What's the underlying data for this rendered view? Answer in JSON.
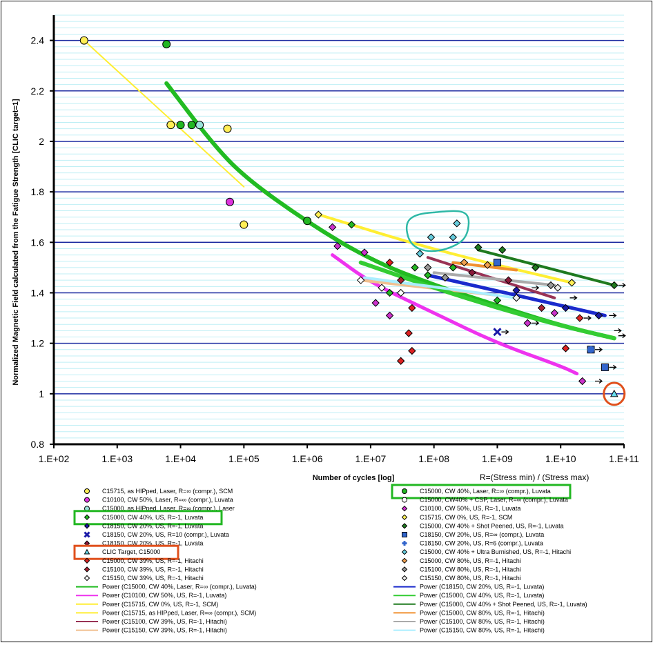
{
  "chart_data": {
    "type": "scatter",
    "title": "",
    "xlabel": "Number of cycles [log]",
    "ylabel": "Normalized Magnetic Field calculated from the Fatigue Strength  [CLIC target=1]",
    "r_note": "R=(Stress min) / (Stress max)",
    "xscale": "log",
    "xlim": [
      100,
      100000000000
    ],
    "ylim": [
      0.8,
      2.5
    ],
    "x_ticks": [
      100,
      1000,
      10000,
      100000,
      1000000,
      10000000,
      100000000,
      1000000000,
      10000000000,
      100000000000
    ],
    "x_tick_labels": [
      "1.E+02",
      "1.E+03",
      "1.E+04",
      "1.E+05",
      "1.E+06",
      "1.E+07",
      "1.E+08",
      "1.E+09",
      "1.E+10",
      "1.E+11"
    ],
    "y_ticks": [
      0.8,
      1,
      1.2,
      1.4,
      1.6,
      1.8,
      2,
      2.2,
      2.4
    ],
    "y_tick_labels": [
      "0.8",
      "1",
      "1.2",
      "1.4",
      "1.6",
      "1.8",
      "2",
      "2.2",
      "2.4"
    ],
    "grid": true,
    "colors": {
      "major_grid": "#1c2aa0",
      "minor_grid": "#bfeff5",
      "highlight_green": "#22b722",
      "highlight_red": "#e0501c",
      "highlight_teal": "#2eb8a6"
    },
    "series": [
      {
        "name": "C15715, as HIPped, Laser, R=∞ (compr.), SCM",
        "marker": "circle",
        "color": "#ffee55",
        "points": [
          [
            300,
            2.4
          ],
          [
            7000,
            2.065
          ],
          [
            55000,
            2.05
          ],
          [
            100000,
            1.67
          ]
        ]
      },
      {
        "name": "C10100, CW 50%, Laser, R=∞ (compr.), Luvata",
        "marker": "circle",
        "color": "#dd33dd",
        "points": [
          [
            60000,
            1.76
          ]
        ]
      },
      {
        "name": "C15000, as HIPped, Laser, R=∞ (compr.), Laser",
        "marker": "circle",
        "color": "#9be3d9",
        "points": [
          [
            20000,
            2.065
          ]
        ]
      },
      {
        "name": "C15000, CW 40%, US, R=-1, Luvata",
        "marker": "diamond",
        "color": "#22b722",
        "points": [
          [
            5000000,
            1.67
          ],
          [
            20000000,
            1.4
          ],
          [
            50000000,
            1.5
          ],
          [
            80000000,
            1.47
          ],
          [
            200000000,
            1.5
          ],
          [
            1000000000,
            1.37
          ]
        ]
      },
      {
        "name": "C18150, CW 20%, US, R=-1, Luvata",
        "marker": "diamond",
        "color": "#1a1aa8",
        "points": [
          [
            2000000000,
            1.41
          ],
          [
            12000000000,
            1.34
          ],
          [
            40000000000,
            1.31
          ]
        ]
      },
      {
        "name": "C18150, CW 20%, US, R=10 (compr.), Luvata",
        "marker": "x",
        "color": "#1a1aa8",
        "points": [
          [
            1000000000,
            1.245
          ]
        ]
      },
      {
        "name": "C18150, CW 20%, US, R=-1, Luvata",
        "marker": "diamond",
        "color": "#8b1a3a",
        "points": [
          [
            400000000,
            1.48
          ],
          [
            1500000000,
            1.45
          ]
        ]
      },
      {
        "name": "CLIC Target, C15000",
        "marker": "triangle",
        "color": "#66ddee",
        "points": [
          [
            70000000000,
            1.0
          ]
        ]
      },
      {
        "name": "C15000, CW 39%, US, R=-1, Hitachi",
        "marker": "diamond",
        "color": "#dd2222",
        "points": [
          [
            30000000,
            1.13
          ],
          [
            40000000,
            1.24
          ],
          [
            45000000,
            1.17
          ],
          [
            45000000,
            1.34
          ],
          [
            20000000,
            1.52
          ],
          [
            12000000000,
            1.18
          ],
          [
            20000000000,
            1.3
          ]
        ]
      },
      {
        "name": "C15100, CW 39%, US, R=-1, Hitachi",
        "marker": "diamond",
        "color": "#aa2233",
        "points": [
          [
            30000000,
            1.45
          ],
          [
            5000000000,
            1.34
          ]
        ]
      },
      {
        "name": "C15150, CW 39%, US, R=-1, Hitachi",
        "marker": "diamond",
        "color": "#ffffff",
        "points": [
          [
            7000000,
            1.45
          ],
          [
            15000000,
            1.42
          ],
          [
            30000000,
            1.4
          ]
        ]
      },
      {
        "name": "C15000, CW 40%, Laser, R=∞ (compr.), Luvata",
        "marker": "circle",
        "color": "#22b722",
        "points": [
          [
            6000,
            2.385
          ],
          [
            10000,
            2.065
          ],
          [
            15000,
            2.065
          ],
          [
            1000000,
            1.685
          ]
        ]
      },
      {
        "name": "C15000, CW40% + CSP, Laser, R=∞ (compr.), Luvata",
        "marker": "circle",
        "color": "#ffffff",
        "points": []
      },
      {
        "name": "C10100, CW 50%, US, R=-1, Luvata",
        "marker": "diamond",
        "color": "#cc33cc",
        "points": [
          [
            2500000,
            1.66
          ],
          [
            3000000,
            1.585
          ],
          [
            8000000,
            1.56
          ],
          [
            12000000,
            1.36
          ],
          [
            20000000,
            1.31
          ],
          [
            3000000000,
            1.28
          ],
          [
            8000000000,
            1.32
          ],
          [
            22000000000,
            1.05
          ]
        ]
      },
      {
        "name": "C15715, CW 0%, US, R=-1, SCM",
        "marker": "diamond",
        "color": "#ffee55",
        "points": [
          [
            1500000,
            1.71
          ],
          [
            15000000000,
            1.44
          ]
        ]
      },
      {
        "name": "C15000, CW 40% + Shot Peened, US, R=-1, Luvata",
        "marker": "diamond",
        "color": "#1f7a1f",
        "points": [
          [
            500000000,
            1.58
          ],
          [
            1200000000,
            1.57
          ],
          [
            4000000000,
            1.5
          ],
          [
            70000000000,
            1.43
          ]
        ]
      },
      {
        "name": "C18150, CW 20%, US, R=∞ (compr.), Luvata",
        "marker": "square",
        "color": "#3366cc",
        "points": [
          [
            1000000000,
            1.52
          ],
          [
            30000000000,
            1.175
          ],
          [
            50000000000,
            1.105
          ]
        ]
      },
      {
        "name": "C18150, CW 20%, US, R=6 (compr.), Luvata",
        "marker": "plus",
        "color": "#3366cc",
        "points": [
          [
            30000000000,
            1.175
          ]
        ]
      },
      {
        "name": "C15000, CW 40% + Ultra Burnished, US, R=-1, Hitachi",
        "marker": "diamond",
        "color": "#66ccdd",
        "points": [
          [
            60000000,
            1.555
          ],
          [
            90000000,
            1.62
          ],
          [
            200000000,
            1.62
          ],
          [
            230000000,
            1.675
          ]
        ]
      },
      {
        "name": "C15000, CW 80%, US, R=-1, Hitachi",
        "marker": "diamond",
        "color": "#f0a050",
        "points": [
          [
            300000000,
            1.52
          ],
          [
            700000000,
            1.51
          ]
        ]
      },
      {
        "name": "C15100, CW 80%, US, R=-1, Hitachi",
        "marker": "diamond",
        "color": "#999999",
        "points": [
          [
            80000000,
            1.5
          ],
          [
            150000000,
            1.46
          ],
          [
            7000000000,
            1.43
          ]
        ]
      },
      {
        "name": "C15150, CW 80%, US, R=-1, Hitachi",
        "marker": "diamond",
        "color": "#eeeeee",
        "points": [
          [
            9000000000,
            1.42
          ],
          [
            2000000000,
            1.38
          ]
        ]
      }
    ],
    "fits": [
      {
        "name": "Power (C15000, CW 40%, Laser, R=∞ (compr.), Luvata)",
        "color": "#22bb22",
        "width": 6,
        "x_range": [
          6000,
          70000000000
        ],
        "points": [
          [
            6000,
            2.23
          ],
          [
            30000,
            2.0
          ],
          [
            100000,
            1.86
          ],
          [
            1000000,
            1.68
          ],
          [
            10000000,
            1.53
          ],
          [
            100000000,
            1.43
          ],
          [
            1000000000,
            1.35
          ],
          [
            10000000000,
            1.27
          ],
          [
            70000000000,
            1.22
          ]
        ]
      },
      {
        "name": "Power (C10100, CW 50%, US, R=-1, Luvata)",
        "color": "#ee33ee",
        "width": 5,
        "x_range": [
          2500000,
          18000000000
        ],
        "points": [
          [
            2500000,
            1.55
          ],
          [
            10000000,
            1.44
          ],
          [
            100000000,
            1.32
          ],
          [
            1000000000,
            1.2
          ],
          [
            10000000000,
            1.11
          ],
          [
            18000000000,
            1.08
          ]
        ]
      },
      {
        "name": "Power (C15715, CW 0%, US, R=-1, SCM)",
        "color": "#ffee33",
        "width": 4,
        "x_range": [
          1500000,
          15000000000
        ],
        "points": [
          [
            1500000,
            1.71
          ],
          [
            100000000,
            1.57
          ],
          [
            15000000000,
            1.44
          ]
        ]
      },
      {
        "name": "Power (C15715, as HIPped, Laser, R=∞ (compr.), SCM)",
        "color": "#ffee33",
        "width": 2,
        "x_range": [
          300,
          100000
        ],
        "points": [
          [
            300,
            2.4
          ],
          [
            100000,
            1.82
          ]
        ]
      },
      {
        "name": "Power (C15100, CW 39%, US, R=-1, Hitachi)",
        "color": "#993355",
        "width": 4,
        "x_range": [
          80000000,
          8000000000
        ],
        "points": [
          [
            80000000,
            1.54
          ],
          [
            8000000000,
            1.38
          ]
        ]
      },
      {
        "name": "Power (C15150, CW 39%, US, R=-1, Hitachi)",
        "color": "#f0c090",
        "width": 4,
        "x_range": [
          7000000,
          1000000000
        ],
        "points": [
          [
            7000000,
            1.45
          ],
          [
            1000000000,
            1.39
          ]
        ]
      },
      {
        "name": "Power (C18150, CW 20%, US, R=-1, Luvata)",
        "color": "#1a2acc",
        "width": 5,
        "x_range": [
          80000000,
          50000000000
        ],
        "points": [
          [
            80000000,
            1.47
          ],
          [
            50000000000,
            1.31
          ]
        ]
      },
      {
        "name": "Power (C15000, CW 40%, US, R=-1, Luvata)",
        "color": "#33cc33",
        "width": 6,
        "x_range": [
          7000000,
          70000000000
        ],
        "points": [
          [
            7000000,
            1.52
          ],
          [
            100000000,
            1.42
          ],
          [
            1000000000,
            1.34
          ],
          [
            10000000000,
            1.27
          ],
          [
            70000000000,
            1.22
          ]
        ]
      },
      {
        "name": "Power (C15000, CW 40% + Shot Peened, US, R=-1, Luvata)",
        "color": "#1f7a1f",
        "width": 4,
        "x_range": [
          500000000,
          70000000000
        ],
        "points": [
          [
            500000000,
            1.57
          ],
          [
            70000000000,
            1.43
          ]
        ]
      },
      {
        "name": "Power (C15000, CW 80%, US, R=-1, Hitachi)",
        "color": "#f09030",
        "width": 4,
        "x_range": [
          200000000,
          2000000000
        ],
        "points": [
          [
            200000000,
            1.52
          ],
          [
            2000000000,
            1.49
          ]
        ]
      },
      {
        "name": "Power (C15100, CW 80%, US, R=-1, Hitachi)",
        "color": "#aaaaaa",
        "width": 4,
        "x_range": [
          100000000,
          8000000000
        ],
        "points": [
          [
            100000000,
            1.48
          ],
          [
            8000000000,
            1.43
          ]
        ]
      },
      {
        "name": "Power (C15150, CW 80%, US, R=-1, Hitachi)",
        "color": "#aaeeff",
        "width": 4,
        "x_range": [
          8000000,
          2000000000
        ],
        "points": [
          [
            8000000,
            1.46
          ],
          [
            2000000000,
            1.38
          ]
        ]
      }
    ],
    "runouts": [
      [
        70000000000,
        1.43
      ],
      [
        50000000000,
        1.31
      ],
      [
        60000000000,
        1.25
      ],
      [
        70000000000,
        1.23
      ],
      [
        30000000000,
        1.175
      ],
      [
        50000000000,
        1.105
      ],
      [
        12000000000,
        1.38
      ],
      [
        20000000000,
        1.3
      ],
      [
        3000000000,
        1.28
      ],
      [
        1000000000,
        1.245
      ],
      [
        30000000000,
        1.05
      ],
      [
        3000000000,
        1.42
      ]
    ],
    "legend_left": [
      {
        "marker": "circle",
        "color": "#ffee55",
        "label": "C15715, as HIPped, Laser, R=∞ (compr.), SCM"
      },
      {
        "marker": "circle",
        "color": "#dd33dd",
        "label": "C10100, CW 50%, Laser, R=∞ (compr.), Luvata"
      },
      {
        "marker": "circle",
        "color": "#9be3d9",
        "label": "C15000, as HIPped, Laser, R=∞ (compr.), Laser"
      },
      {
        "marker": "diamond",
        "color": "#22b722",
        "label": "C15000, CW 40%, US, R=-1, Luvata",
        "box": "green"
      },
      {
        "marker": "diamond",
        "color": "#1a1aa8",
        "label": "C18150, CW 20%, US, R=-1, Luvata"
      },
      {
        "marker": "x",
        "color": "#1a1aa8",
        "label": "C18150, CW 20%, US, R=10 (compr.), Luvata"
      },
      {
        "marker": "diamond",
        "color": "#8b1a3a",
        "label": "C18150, CW 20%, US, R=-1, Luvata"
      },
      {
        "marker": "triangle",
        "color": "#66ddee",
        "label": "CLIC Target, C15000",
        "box": "red"
      },
      {
        "marker": "diamond",
        "color": "#dd2222",
        "label": "C15000, CW 39%, US, R=-1, Hitachi"
      },
      {
        "marker": "diamond",
        "color": "#aa2233",
        "label": "C15100, CW 39%, US, R=-1, Hitachi"
      },
      {
        "marker": "diamond",
        "color": "#ffffff",
        "label": "C15150, CW 39%, US, R=-1, Hitachi"
      },
      {
        "marker": "line",
        "color": "#22bb22",
        "label": "Power (C15000, CW 40%, Laser, R=∞ (compr.), Luvata)"
      },
      {
        "marker": "line",
        "color": "#ee33ee",
        "label": "Power (C10100, CW 50%, US, R=-1, Luvata)"
      },
      {
        "marker": "line",
        "color": "#ffee33",
        "label": "Power (C15715, CW 0%, US, R=-1, SCM)"
      },
      {
        "marker": "line",
        "color": "#ffee33",
        "label": "Power (C15715, as HIPped, Laser, R=∞ (compr.), SCM)"
      },
      {
        "marker": "line",
        "color": "#993355",
        "label": "Power (C15100, CW 39%, US, R=-1, Hitachi)"
      },
      {
        "marker": "line",
        "color": "#f0c090",
        "label": "Power (C15150, CW 39%, US, R=-1, Hitachi)"
      }
    ],
    "legend_right": [
      {
        "marker": "circle",
        "color": "#22b722",
        "label": "C15000, CW 40%, Laser, R=∞ (compr.), Luvata",
        "box": "green"
      },
      {
        "marker": "circle",
        "color": "#ffffff",
        "label": "C15000, CW40% + CSP, Laser, R=∞ (compr.), Luvata"
      },
      {
        "marker": "diamond",
        "color": "#cc33cc",
        "label": "C10100, CW 50%, US, R=-1, Luvata"
      },
      {
        "marker": "diamond",
        "color": "#ffee55",
        "label": "C15715, CW 0%, US, R=-1, SCM"
      },
      {
        "marker": "diamond",
        "color": "#1f7a1f",
        "label": "C15000, CW 40% + Shot Peened, US, R=-1, Luvata"
      },
      {
        "marker": "square",
        "color": "#3366cc",
        "label": "C18150, CW 20%, US, R=∞ (compr.), Luvata"
      },
      {
        "marker": "plus",
        "color": "#3366cc",
        "label": "C18150, CW 20%, US, R=6 (compr.), Luvata"
      },
      {
        "marker": "diamond",
        "color": "#66ccdd",
        "label": "C15000, CW 40% + Ultra Burnished, US, R=-1, Hitachi"
      },
      {
        "marker": "diamond",
        "color": "#f0a050",
        "label": "C15000, CW 80%, US, R=-1, Hitachi"
      },
      {
        "marker": "diamond",
        "color": "#999999",
        "label": "C15100, CW 80%, US, R=-1, Hitachi"
      },
      {
        "marker": "diamond",
        "color": "#eeeeee",
        "label": "C15150, CW 80%, US, R=-1, Hitachi"
      },
      {
        "marker": "line",
        "color": "#1a2acc",
        "label": "Power (C18150, CW 20%, US, R=-1, Luvata)"
      },
      {
        "marker": "line",
        "color": "#33cc33",
        "label": "Power (C15000, CW 40%, US, R=-1, Luvata)"
      },
      {
        "marker": "line",
        "color": "#1f7a1f",
        "label": "Power (C15000, CW 40% + Shot Peened, US, R=-1, Luvata)"
      },
      {
        "marker": "line",
        "color": "#f09030",
        "label": "Power (C15000, CW 80%, US, R=-1, Hitachi)"
      },
      {
        "marker": "line",
        "color": "#aaaaaa",
        "label": "Power (C15100, CW 80%, US, R=-1, Hitachi)"
      },
      {
        "marker": "line",
        "color": "#aaeeff",
        "label": "Power (C15150, CW 80%, US, R=-1, Hitachi)"
      }
    ]
  }
}
